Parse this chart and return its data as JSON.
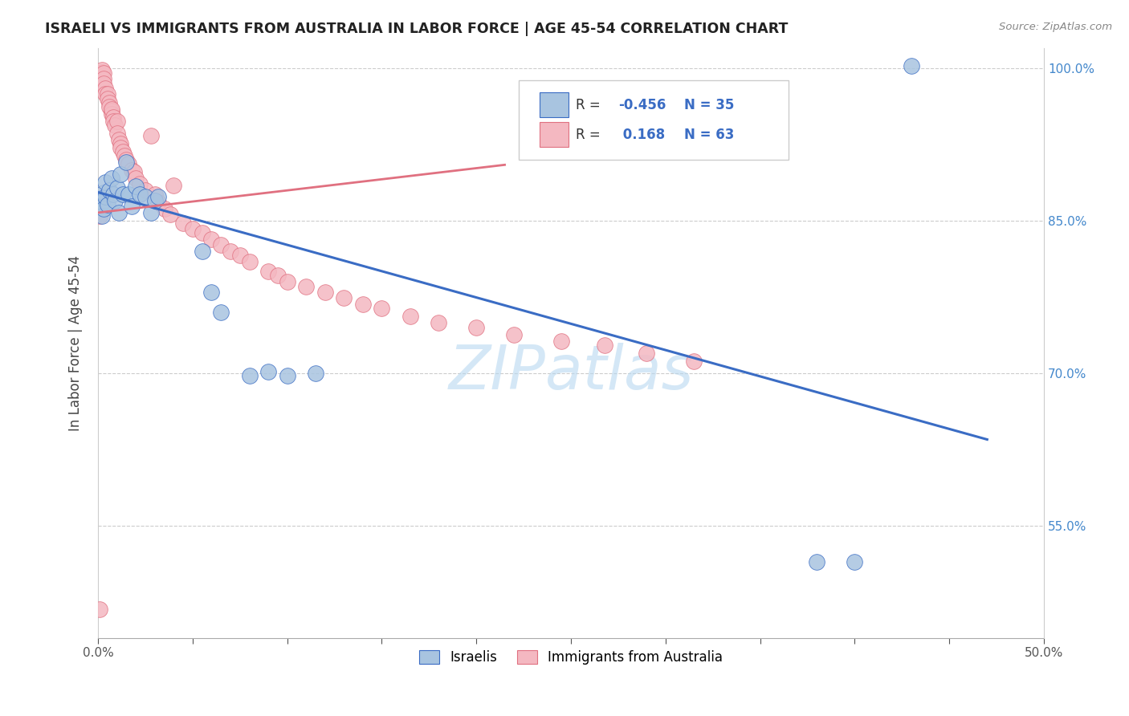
{
  "title": "ISRAELI VS IMMIGRANTS FROM AUSTRALIA IN LABOR FORCE | AGE 45-54 CORRELATION CHART",
  "source": "Source: ZipAtlas.com",
  "ylabel": "In Labor Force | Age 45-54",
  "xlim": [
    0.0,
    0.5
  ],
  "ylim": [
    0.44,
    1.02
  ],
  "xtick_labels_ends": [
    "0.0%",
    "50.0%"
  ],
  "xtick_values_ends": [
    0.0,
    0.5
  ],
  "right_ytick_labels": [
    "100.0%",
    "85.0%",
    "70.0%",
    "55.0%"
  ],
  "right_ytick_values": [
    1.0,
    0.85,
    0.7,
    0.55
  ],
  "grid_ytick_values": [
    0.55,
    0.7,
    0.85,
    1.0
  ],
  "israelis_color": "#a8c4e0",
  "australia_color": "#f4b8c1",
  "trend_blue_color": "#3a6cc4",
  "trend_pink_color": "#e07080",
  "legend_r_blue": "-0.456",
  "legend_n_blue": "35",
  "legend_r_pink": "0.168",
  "legend_n_pink": "63",
  "watermark": "ZIPatlas",
  "watermark_color": "#b8d8f0",
  "blue_trend_x": [
    0.0,
    0.47
  ],
  "blue_trend_y": [
    0.878,
    0.635
  ],
  "pink_trend_x": [
    0.0,
    0.215
  ],
  "pink_trend_y": [
    0.858,
    0.905
  ],
  "israelis_x": [
    0.001,
    0.002,
    0.002,
    0.003,
    0.003,
    0.004,
    0.004,
    0.005,
    0.006,
    0.007,
    0.008,
    0.009,
    0.01,
    0.011,
    0.012,
    0.013,
    0.015,
    0.016,
    0.018,
    0.02,
    0.022,
    0.025,
    0.028,
    0.03,
    0.032,
    0.055,
    0.06,
    0.065,
    0.08,
    0.09,
    0.1,
    0.115,
    0.38,
    0.4,
    0.43
  ],
  "israelis_y": [
    0.872,
    0.868,
    0.855,
    0.862,
    0.878,
    0.874,
    0.888,
    0.866,
    0.88,
    0.892,
    0.876,
    0.87,
    0.882,
    0.858,
    0.896,
    0.876,
    0.908,
    0.876,
    0.864,
    0.884,
    0.876,
    0.874,
    0.858,
    0.87,
    0.874,
    0.82,
    0.78,
    0.76,
    0.698,
    0.702,
    0.698,
    0.7,
    0.515,
    0.515,
    1.002
  ],
  "australia_x": [
    0.001,
    0.001,
    0.002,
    0.002,
    0.003,
    0.003,
    0.003,
    0.004,
    0.004,
    0.005,
    0.005,
    0.006,
    0.006,
    0.007,
    0.007,
    0.007,
    0.008,
    0.008,
    0.009,
    0.01,
    0.01,
    0.011,
    0.012,
    0.012,
    0.013,
    0.014,
    0.015,
    0.016,
    0.018,
    0.019,
    0.02,
    0.022,
    0.025,
    0.028,
    0.03,
    0.032,
    0.035,
    0.038,
    0.04,
    0.045,
    0.05,
    0.055,
    0.06,
    0.065,
    0.07,
    0.075,
    0.08,
    0.09,
    0.095,
    0.1,
    0.11,
    0.12,
    0.13,
    0.14,
    0.15,
    0.165,
    0.18,
    0.2,
    0.22,
    0.245,
    0.268,
    0.29,
    0.315
  ],
  "australia_y": [
    0.468,
    0.855,
    0.996,
    0.998,
    0.995,
    0.99,
    0.985,
    0.98,
    0.975,
    0.975,
    0.97,
    0.966,
    0.962,
    0.958,
    0.955,
    0.96,
    0.952,
    0.948,
    0.944,
    0.948,
    0.936,
    0.93,
    0.926,
    0.922,
    0.918,
    0.914,
    0.91,
    0.906,
    0.9,
    0.898,
    0.892,
    0.886,
    0.88,
    0.934,
    0.876,
    0.868,
    0.862,
    0.856,
    0.885,
    0.848,
    0.842,
    0.838,
    0.832,
    0.826,
    0.82,
    0.816,
    0.81,
    0.8,
    0.796,
    0.79,
    0.785,
    0.78,
    0.774,
    0.768,
    0.764,
    0.756,
    0.75,
    0.745,
    0.738,
    0.732,
    0.728,
    0.72,
    0.712
  ]
}
